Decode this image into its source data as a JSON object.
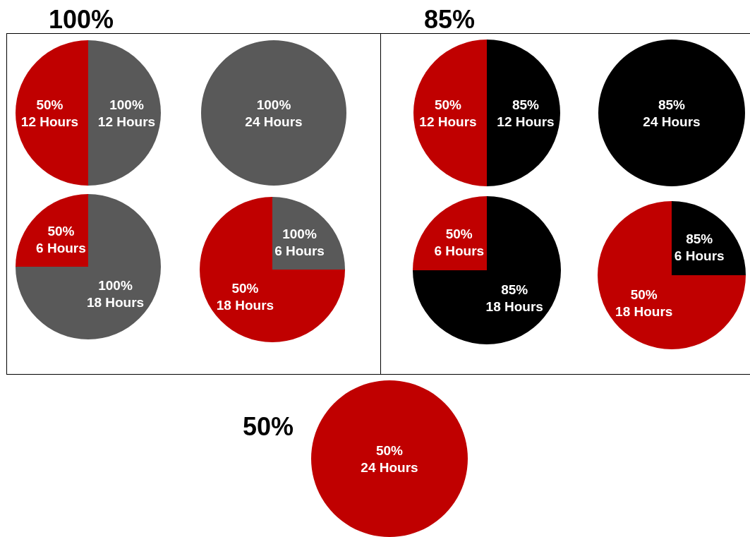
{
  "chart_data": [
    {
      "type": "pie",
      "title": "100%",
      "categories": [
        "100%\n12 Hours",
        "50%\n12 Hours"
      ],
      "values": [
        12,
        12
      ],
      "colors": [
        "#595959",
        "#c00000"
      ]
    },
    {
      "type": "pie",
      "categories": [
        "100%\n24 Hours"
      ],
      "values": [
        24
      ],
      "colors": [
        "#595959"
      ]
    },
    {
      "type": "pie",
      "categories": [
        "100%\n18 Hours",
        "50%\n6 Hours"
      ],
      "values": [
        18,
        6
      ],
      "colors": [
        "#595959",
        "#c00000"
      ]
    },
    {
      "type": "pie",
      "categories": [
        "100%\n6 Hours",
        "50%\n18 Hours"
      ],
      "values": [
        6,
        18
      ],
      "colors": [
        "#595959",
        "#c00000"
      ]
    },
    {
      "type": "pie",
      "title": "85%",
      "categories": [
        "85%\n12 Hours",
        "50%\n12 Hours"
      ],
      "values": [
        12,
        12
      ],
      "colors": [
        "#000000",
        "#c00000"
      ]
    },
    {
      "type": "pie",
      "categories": [
        "85%\n24 Hours"
      ],
      "values": [
        24
      ],
      "colors": [
        "#000000"
      ]
    },
    {
      "type": "pie",
      "categories": [
        "85%\n18 Hours",
        "50%\n6 Hours"
      ],
      "values": [
        18,
        6
      ],
      "colors": [
        "#000000",
        "#c00000"
      ]
    },
    {
      "type": "pie",
      "categories": [
        "85%\n6 Hours",
        "50%\n18 Hours"
      ],
      "values": [
        6,
        18
      ],
      "colors": [
        "#000000",
        "#c00000"
      ]
    },
    {
      "type": "pie",
      "title": "50%",
      "categories": [
        "50%\n24 Hours"
      ],
      "values": [
        24
      ],
      "colors": [
        "#c00000"
      ]
    }
  ]
}
